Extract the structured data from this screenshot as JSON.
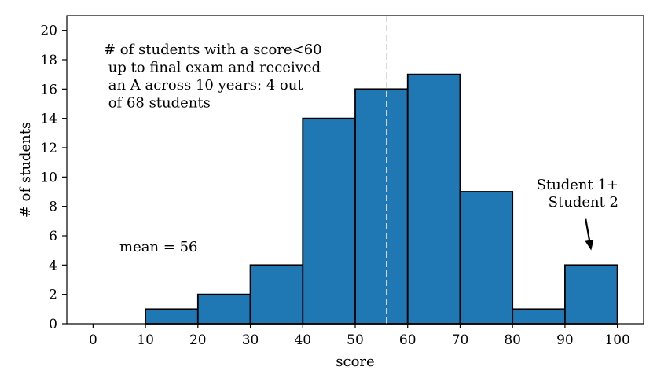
{
  "chart_data": {
    "type": "bar",
    "bins": [
      {
        "start": 0,
        "end": 10,
        "count": 0
      },
      {
        "start": 10,
        "end": 20,
        "count": 1
      },
      {
        "start": 20,
        "end": 30,
        "count": 2
      },
      {
        "start": 30,
        "end": 40,
        "count": 4
      },
      {
        "start": 40,
        "end": 50,
        "count": 14
      },
      {
        "start": 50,
        "end": 60,
        "count": 16
      },
      {
        "start": 60,
        "end": 70,
        "count": 17
      },
      {
        "start": 70,
        "end": 80,
        "count": 9
      },
      {
        "start": 80,
        "end": 90,
        "count": 1
      },
      {
        "start": 90,
        "end": 100,
        "count": 4
      }
    ],
    "xlabel": "score",
    "ylabel": "# of students",
    "xlim": [
      -5,
      105
    ],
    "ylim": [
      0,
      21
    ],
    "xticks": [
      0,
      10,
      20,
      30,
      40,
      50,
      60,
      70,
      80,
      90,
      100
    ],
    "yticks": [
      0,
      2,
      4,
      6,
      8,
      10,
      12,
      14,
      16,
      18,
      20
    ],
    "grid": false,
    "mean_line": {
      "x": 56,
      "style": "dashed",
      "color": "#d9d9d9"
    },
    "bar_color": "#1f77b4",
    "edge_color": "#000000",
    "annotations": {
      "text_block": [
        "# of students with a score<60",
        " up to final exam and received",
        " an A across 10 years: 4 out",
        " of 68 students"
      ],
      "mean_label": "mean = 56",
      "arrow_label": [
        "Student 1+",
        "Student 2"
      ],
      "arrow_target": {
        "x": 95,
        "y": 5
      }
    }
  }
}
